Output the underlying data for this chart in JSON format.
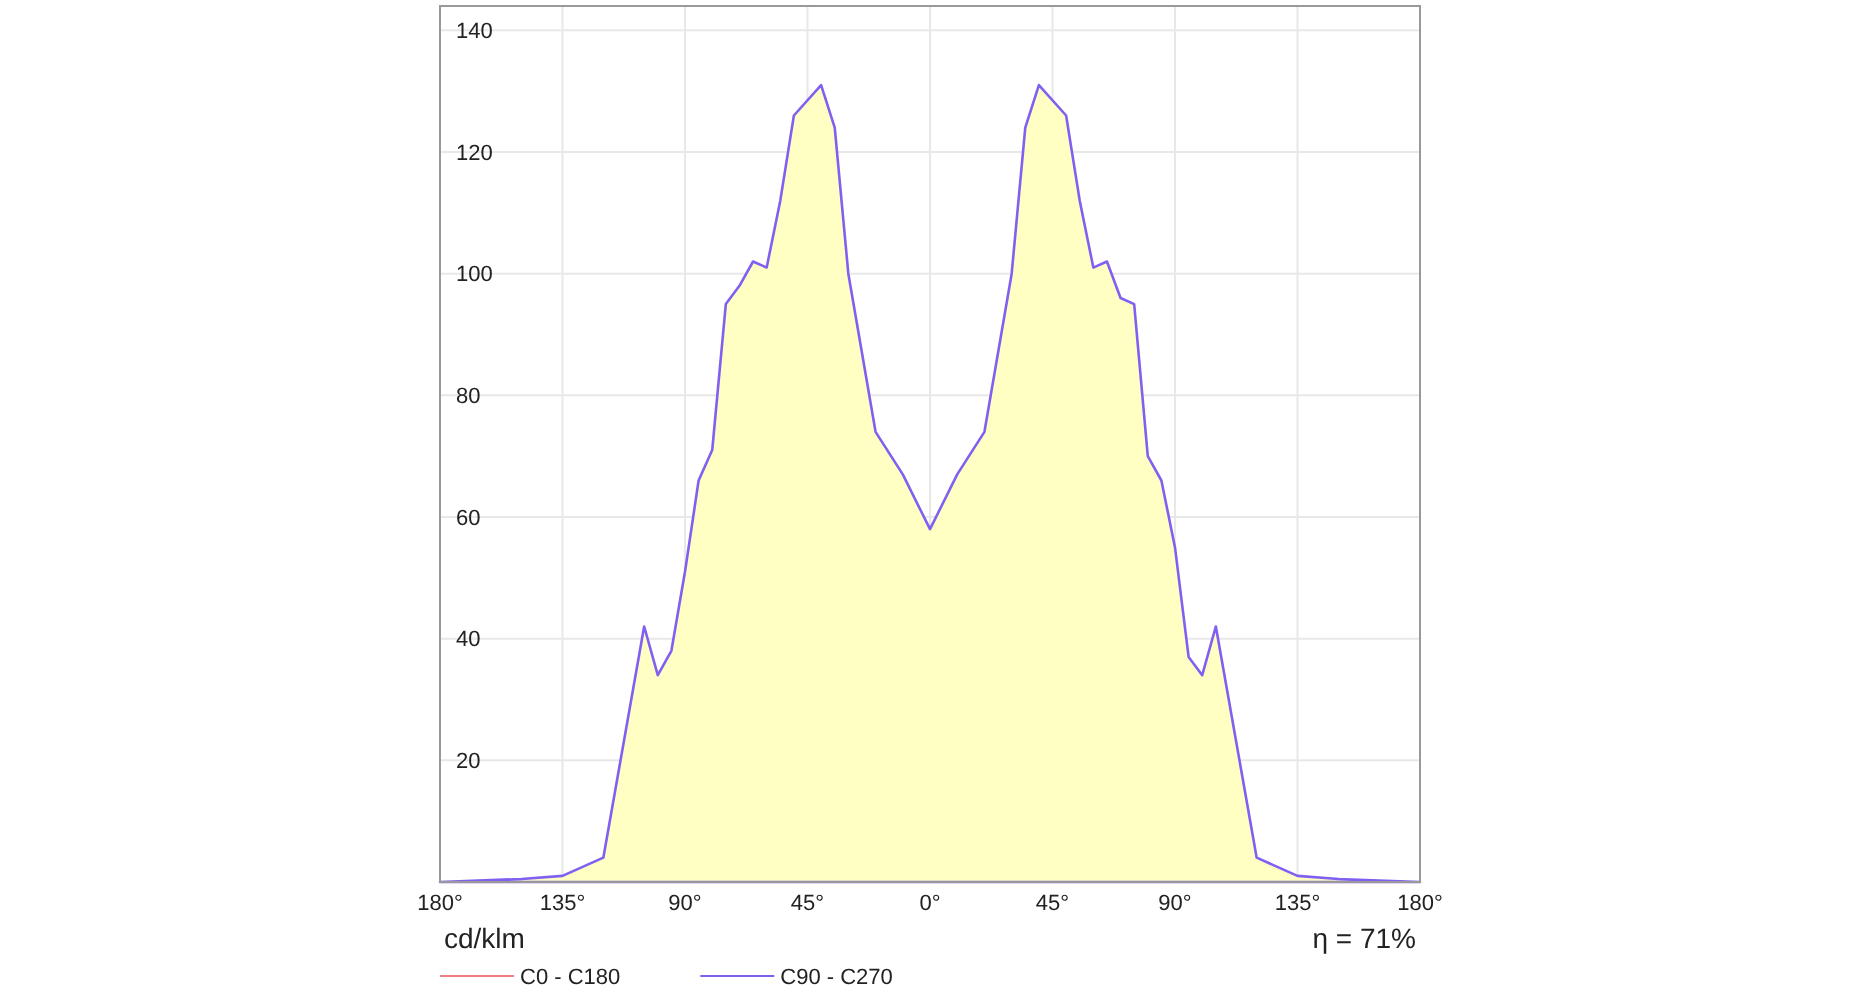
{
  "chart_data": {
    "type": "area",
    "x": [
      -180,
      -150,
      -135,
      -120,
      -105,
      -100,
      -95,
      -90,
      -85,
      -80,
      -75,
      -70,
      -65,
      -60,
      -55,
      -50,
      -40,
      -35,
      -30,
      -20,
      -10,
      0,
      10,
      20,
      30,
      35,
      40,
      50,
      55,
      60,
      65,
      70,
      75,
      80,
      85,
      90,
      95,
      100,
      105,
      120,
      135,
      150,
      180
    ],
    "series": [
      {
        "name": "C0 - C180",
        "color": "#f08080",
        "values": [
          null,
          null,
          null,
          null,
          null,
          null,
          null,
          null,
          null,
          null,
          null,
          null,
          null,
          null,
          null,
          null,
          null,
          null,
          null,
          null,
          null,
          null,
          null,
          null,
          null,
          null,
          null,
          null,
          null,
          null,
          null,
          null,
          null,
          null,
          null,
          null,
          null,
          null,
          null,
          null,
          null,
          null,
          null
        ]
      },
      {
        "name": "C90 - C270",
        "color": "#8060f0",
        "values": [
          0,
          0.5,
          1,
          4,
          42,
          34,
          38,
          51,
          66,
          71,
          95,
          98,
          102,
          101,
          112,
          126,
          131,
          124,
          100,
          74,
          67,
          58,
          67,
          74,
          100,
          124,
          131,
          126,
          112,
          101,
          102,
          96,
          95,
          70,
          66,
          55,
          37,
          34,
          42,
          4,
          1,
          0.5,
          0
        ]
      }
    ],
    "xlim": [
      -180,
      180
    ],
    "xticks": [
      {
        "value": -180,
        "label": "180°"
      },
      {
        "value": -135,
        "label": "135°"
      },
      {
        "value": -90,
        "label": "90°"
      },
      {
        "value": -45,
        "label": "45°"
      },
      {
        "value": 0,
        "label": "0°"
      },
      {
        "value": 45,
        "label": "45°"
      },
      {
        "value": 90,
        "label": "90°"
      },
      {
        "value": 135,
        "label": "135°"
      },
      {
        "value": 180,
        "label": "180°"
      }
    ],
    "ylim": [
      0,
      144
    ],
    "yticks": [
      20,
      40,
      60,
      80,
      100,
      120,
      140
    ],
    "annotations": [
      "cd/klm",
      "η = 71%"
    ],
    "grid": true,
    "legend": "bottom"
  }
}
